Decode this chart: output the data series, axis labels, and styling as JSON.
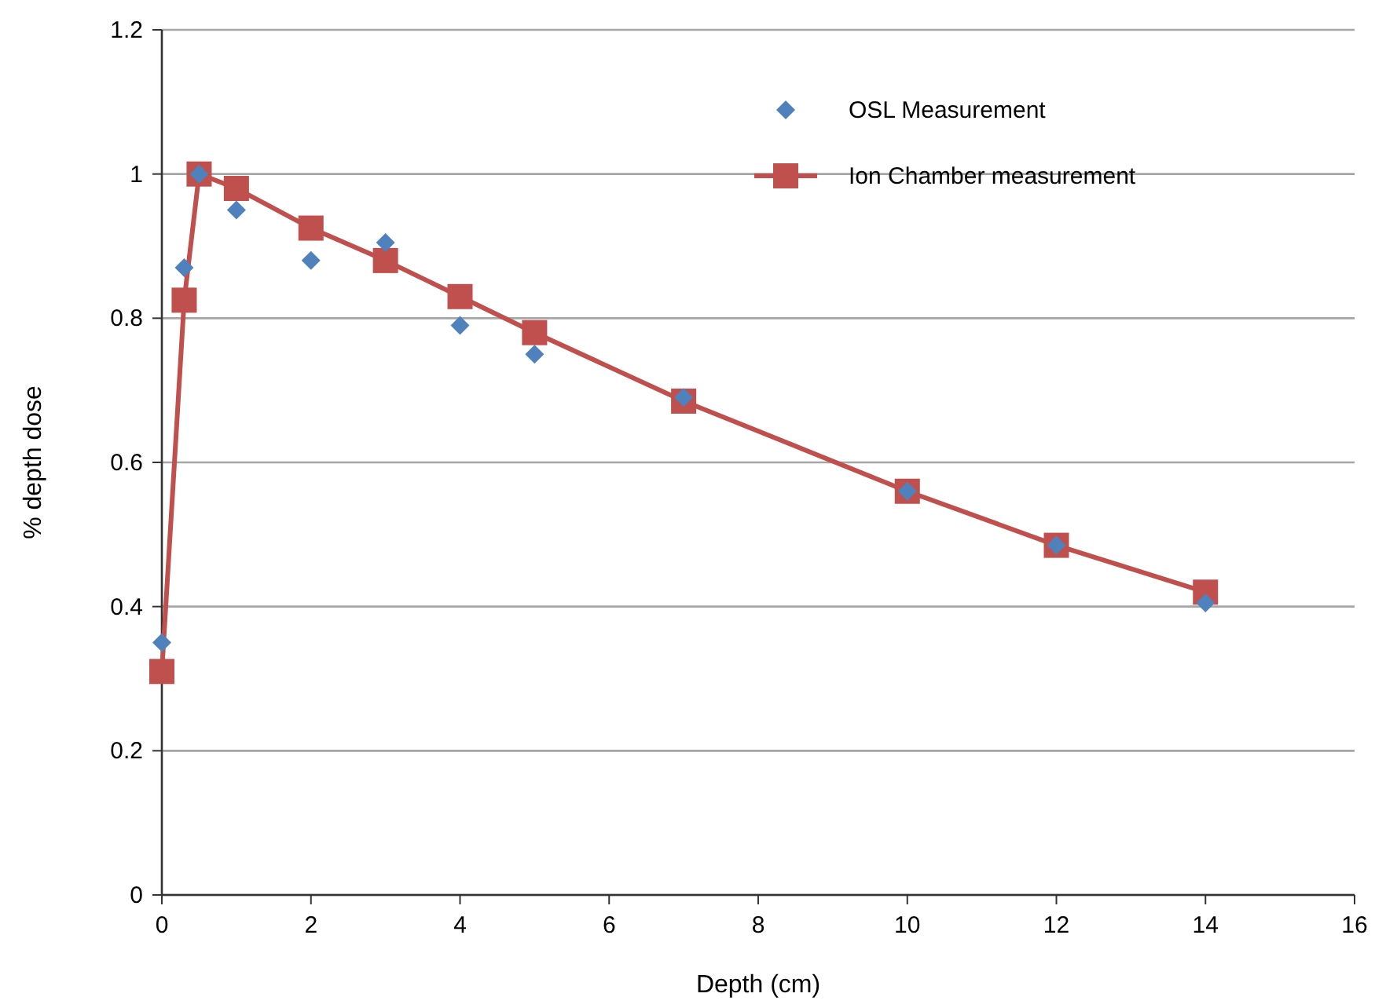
{
  "chart_data": {
    "type": "line",
    "xlabel": "Depth (cm)",
    "ylabel": "% depth dose",
    "xlim": [
      0,
      16
    ],
    "xticks": [
      0,
      2,
      4,
      6,
      8,
      10,
      12,
      14,
      16
    ],
    "ylim": [
      0,
      1.2
    ],
    "yticks": [
      0,
      0.2,
      0.4,
      0.6,
      0.8,
      1,
      1.2
    ],
    "grid": "y",
    "legend": "top right",
    "series": [
      {
        "name": "OSL Measurement",
        "type": "scatter",
        "marker": "diamond",
        "color": "#4f81bd",
        "x": [
          0,
          0.3,
          0.5,
          1,
          2,
          3,
          4,
          5,
          7,
          10,
          12,
          14
        ],
        "values": [
          0.35,
          0.87,
          1.0,
          0.95,
          0.88,
          0.905,
          0.79,
          0.75,
          0.69,
          0.56,
          0.485,
          0.405
        ]
      },
      {
        "name": "Ion Chamber measurement",
        "type": "line",
        "marker": "square",
        "color": "#c0504d",
        "x": [
          0,
          0.3,
          0.5,
          1,
          2,
          3,
          4,
          5,
          7,
          10,
          12,
          14
        ],
        "values": [
          0.31,
          0.825,
          1.0,
          0.98,
          0.925,
          0.88,
          0.83,
          0.78,
          0.685,
          0.56,
          0.485,
          0.42
        ]
      }
    ]
  }
}
